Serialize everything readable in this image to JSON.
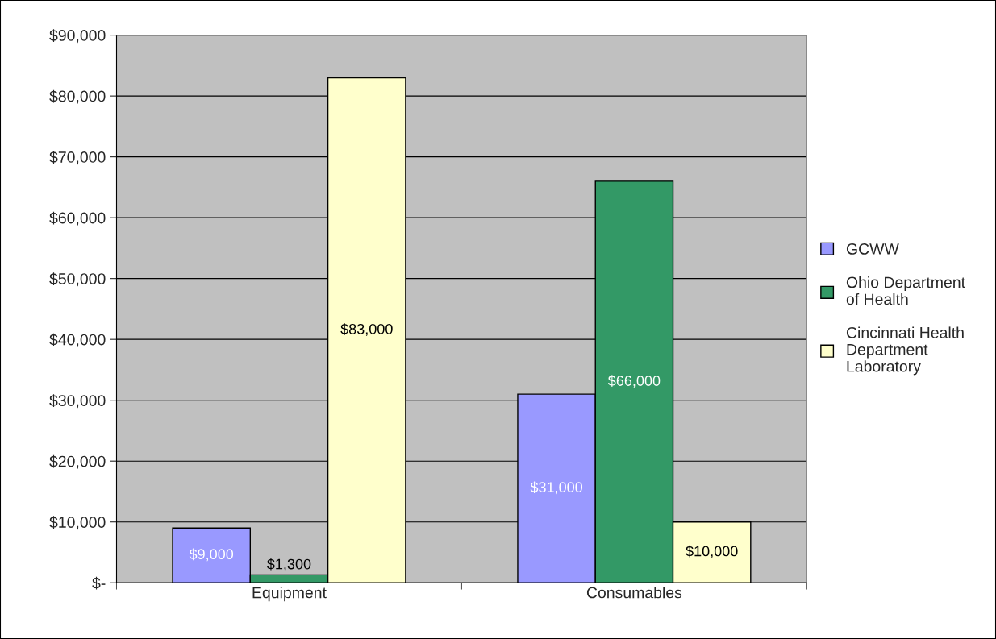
{
  "chart_data": {
    "type": "bar",
    "categories": [
      "Equipment",
      "Consumables"
    ],
    "series": [
      {
        "name": "GCWW",
        "color": "#9999ff",
        "values": [
          9000,
          31000
        ],
        "value_labels": [
          "$9,000",
          "$31,000"
        ]
      },
      {
        "name": "Ohio Department of Health",
        "color": "#339966",
        "values": [
          1300,
          66000
        ],
        "value_labels": [
          "$1,300",
          "$66,000"
        ]
      },
      {
        "name": "Cincinnati Health Department Laboratory",
        "color": "#ffffcc",
        "values": [
          83000,
          10000
        ],
        "value_labels": [
          "$83,000",
          "$10,000"
        ]
      }
    ],
    "ylim": [
      0,
      90000
    ],
    "yticks": [
      {
        "value": 0,
        "label": "$-"
      },
      {
        "value": 10000,
        "label": "$10,000"
      },
      {
        "value": 20000,
        "label": "$20,000"
      },
      {
        "value": 30000,
        "label": "$30,000"
      },
      {
        "value": 40000,
        "label": "$40,000"
      },
      {
        "value": 50000,
        "label": "$50,000"
      },
      {
        "value": 60000,
        "label": "$60,000"
      },
      {
        "value": 70000,
        "label": "$70,000"
      },
      {
        "value": 80000,
        "label": "$80,000"
      },
      {
        "value": 90000,
        "label": "$90,000"
      }
    ],
    "grid": "y",
    "legend": "right"
  }
}
